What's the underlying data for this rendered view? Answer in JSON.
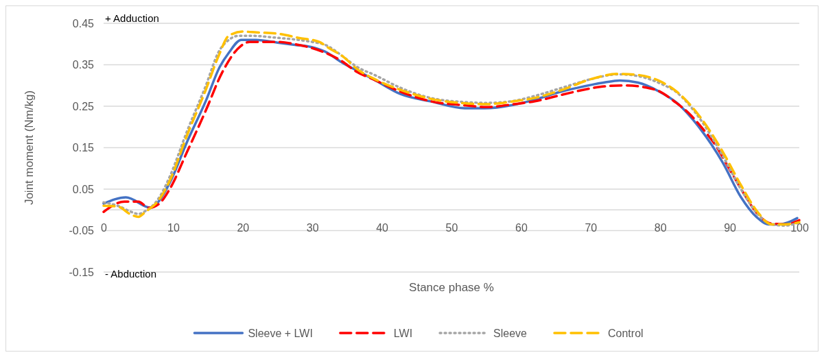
{
  "chart_data": {
    "type": "line",
    "xlabel": "Stance phase %",
    "ylabel": "Joint moment (Nm/kg)",
    "annotations": [
      "+ Adduction",
      "- Abduction"
    ],
    "xlim": [
      0,
      100
    ],
    "xticks": [
      0,
      10,
      20,
      30,
      40,
      50,
      60,
      70,
      80,
      90,
      100
    ],
    "ylim": [
      -0.15,
      0.45
    ],
    "yticks": [
      -0.15,
      -0.05,
      0.05,
      0.15,
      0.25,
      0.35,
      0.45
    ],
    "grid": "y",
    "legend": "bottom",
    "series": [
      {
        "name": "Sleeve + LWI",
        "color": "#4472c4",
        "line_style": "solid",
        "x": [
          0,
          3.2,
          6.8,
          7.8,
          9.5,
          12,
          14.7,
          16.7,
          18,
          19.8,
          21.9,
          25.2,
          27.5,
          29.8,
          31.8,
          34.4,
          36.4,
          39,
          42.6,
          47.2,
          51.9,
          54.8,
          58.8,
          62,
          65.3,
          68,
          71.9,
          74.2,
          76.8,
          79.8,
          82.4,
          85.7,
          89,
          91.6,
          93.9,
          95.6,
          97.2,
          99.7
        ],
        "values": [
          0.015,
          0.03,
          0.005,
          0.018,
          0.065,
          0.164,
          0.263,
          0.345,
          0.379,
          0.41,
          0.41,
          0.403,
          0.398,
          0.393,
          0.382,
          0.354,
          0.336,
          0.313,
          0.28,
          0.261,
          0.245,
          0.245,
          0.253,
          0.266,
          0.283,
          0.294,
          0.307,
          0.312,
          0.307,
          0.286,
          0.258,
          0.197,
          0.114,
          0.031,
          -0.018,
          -0.035,
          -0.035,
          -0.02
        ]
      },
      {
        "name": "LWI",
        "color": "#ff0000",
        "line_style": "dashed",
        "x": [
          0,
          3,
          5,
          6.5,
          8,
          9.5,
          12,
          14.7,
          17,
          19.7,
          21,
          25,
          28,
          30,
          32,
          34.4,
          36,
          39,
          43,
          47,
          52,
          55,
          59,
          62,
          66,
          70,
          72,
          75,
          78,
          80,
          82,
          84,
          86,
          88,
          90,
          92,
          94,
          96,
          98,
          100
        ],
        "values": [
          -0.005,
          0.02,
          0.02,
          0.005,
          0.015,
          0.05,
          0.14,
          0.24,
          0.33,
          0.395,
          0.405,
          0.405,
          0.398,
          0.39,
          0.378,
          0.357,
          0.337,
          0.313,
          0.283,
          0.262,
          0.252,
          0.248,
          0.255,
          0.262,
          0.278,
          0.293,
          0.298,
          0.3,
          0.295,
          0.285,
          0.262,
          0.235,
          0.198,
          0.155,
          0.097,
          0.04,
          -0.01,
          -0.033,
          -0.035,
          -0.025
        ]
      },
      {
        "name": "Sleeve",
        "color": "#a5a5a5",
        "line_style": "dotted",
        "x": [
          0,
          2,
          4,
          5,
          6,
          8,
          9.5,
          12,
          14.7,
          16.5,
          18,
          19.5,
          21,
          25,
          28,
          30,
          32,
          34.4,
          36.4,
          39,
          42.6,
          47,
          52,
          55,
          59,
          62,
          66,
          70,
          74,
          77,
          80,
          82.4,
          85.7,
          89,
          91.6,
          94,
          96,
          98,
          100
        ],
        "values": [
          0.018,
          0.01,
          -0.005,
          -0.01,
          -0.003,
          0.03,
          0.08,
          0.19,
          0.3,
          0.38,
          0.41,
          0.42,
          0.42,
          0.415,
          0.41,
          0.405,
          0.397,
          0.37,
          0.345,
          0.325,
          0.295,
          0.27,
          0.26,
          0.258,
          0.263,
          0.275,
          0.295,
          0.315,
          0.327,
          0.322,
          0.305,
          0.283,
          0.22,
          0.13,
          0.05,
          -0.01,
          -0.035,
          -0.038,
          -0.03
        ]
      },
      {
        "name": "Control",
        "color": "#ffc000",
        "line_style": "dashed",
        "x": [
          0,
          2,
          4,
          5,
          6,
          8,
          9.5,
          12,
          14.7,
          16.5,
          18,
          20,
          22,
          25,
          28,
          31,
          32.4,
          34.4,
          36.4,
          39,
          42.6,
          47,
          52,
          55,
          59,
          62,
          66,
          70,
          74,
          77,
          80,
          82.4,
          85.7,
          89,
          91.6,
          94,
          96,
          98,
          100
        ],
        "values": [
          0.01,
          0.008,
          -0.012,
          -0.017,
          -0.005,
          0.025,
          0.07,
          0.18,
          0.29,
          0.37,
          0.42,
          0.43,
          0.428,
          0.425,
          0.415,
          0.405,
          0.39,
          0.37,
          0.34,
          0.315,
          0.29,
          0.268,
          0.257,
          0.255,
          0.262,
          0.27,
          0.29,
          0.315,
          0.328,
          0.325,
          0.31,
          0.285,
          0.225,
          0.14,
          0.06,
          -0.005,
          -0.035,
          -0.035,
          -0.03
        ]
      }
    ]
  }
}
